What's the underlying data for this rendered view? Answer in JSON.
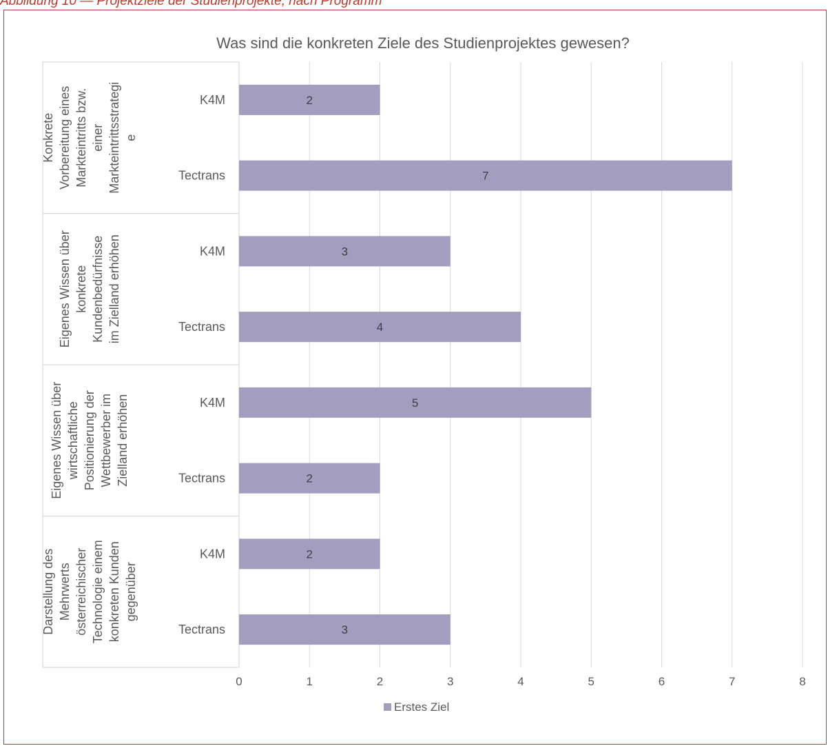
{
  "caption": "Abbildung 10 — Projektziele der Studienprojekte, nach Programm",
  "colors": {
    "bar": "#a39dbf",
    "grid": "#d9d9d9",
    "frame": "#b03a2e",
    "text": "#595959"
  },
  "chart_data": {
    "type": "bar",
    "orientation": "horizontal",
    "title": "Was sind die konkreten Ziele des Studienprojektes gewesen?",
    "groups": [
      {
        "label_lines": [
          "Konkrete",
          "Vorbereitung eines",
          "Markteintritts bzw.",
          "einer",
          "Markteintrittsstrategi",
          "e"
        ],
        "categories": [
          "K4M",
          "Tectrans"
        ],
        "values": [
          2,
          7
        ]
      },
      {
        "label_lines": [
          "Eigenes Wissen über",
          "konkrete",
          "Kundenbedürfnisse",
          "im Zielland erhöhen"
        ],
        "categories": [
          "K4M",
          "Tectrans"
        ],
        "values": [
          3,
          4
        ]
      },
      {
        "label_lines": [
          "Eigenes Wissen über",
          "wirtschaftliche",
          "Positionierung der",
          "Wettbewerber im",
          "Zielland erhöhen"
        ],
        "categories": [
          "K4M",
          "Tectrans"
        ],
        "values": [
          5,
          2
        ]
      },
      {
        "label_lines": [
          "Darstellung des",
          "Mehrwerts",
          "österreichischer",
          "Technologie einem",
          "konkreten Kunden",
          "gegenüber"
        ],
        "categories": [
          "K4M",
          "Tectrans"
        ],
        "values": [
          2,
          3
        ]
      }
    ],
    "series": [
      {
        "name": "Erstes Ziel"
      }
    ],
    "xlim": [
      0,
      8
    ],
    "xticks": [
      0,
      1,
      2,
      3,
      4,
      5,
      6,
      7,
      8
    ],
    "grid": true,
    "legend_position": "bottom"
  }
}
